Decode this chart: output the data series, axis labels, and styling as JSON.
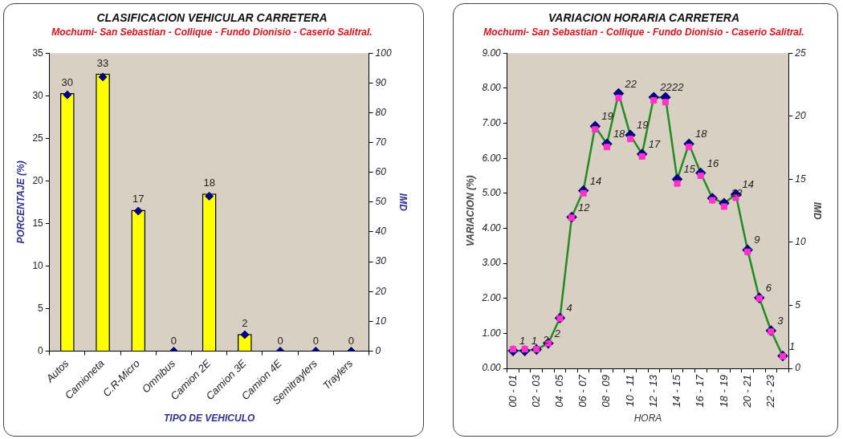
{
  "chart_data": [
    {
      "type": "bar",
      "title": "CLASIFICACION VEHICULAR CARRETERA",
      "subtitle": "Mochumi- San Sebastian - Collique - Fundo Dionisio - Caserio Salitral.",
      "xlabel": "TIPO DE VEHICULO",
      "ylabel": "PORCENTAJE (%)",
      "y2label": "IMD",
      "categories": [
        "Autos",
        "Camioneta",
        "C.R-Micro",
        "Omnibus",
        "Camion 2E",
        "Camion 3E",
        "Camion 4E",
        "Semitraylers",
        "Traylers"
      ],
      "series": [
        {
          "type": "bar",
          "color": "#ffff00",
          "values": [
            30.3,
            32.6,
            16.6,
            0,
            18.5,
            2.0,
            0,
            0,
            0
          ],
          "value_labels": [
            "30",
            "33",
            "17",
            "0",
            "18",
            "2",
            "0",
            "0",
            "0"
          ]
        },
        {
          "type": "scatter",
          "axis": "y2",
          "color": "#000080",
          "marker": "diamond",
          "values": [
            86,
            92,
            47,
            0,
            52,
            5.5,
            0,
            0,
            0
          ]
        }
      ],
      "ylim": [
        0,
        35
      ],
      "yticks": [
        0,
        5,
        10,
        15,
        20,
        25,
        30,
        35
      ],
      "y2lim": [
        0,
        100
      ],
      "y2ticks": [
        0,
        10,
        20,
        30,
        40,
        50,
        60,
        70,
        80,
        90,
        100
      ]
    },
    {
      "type": "line",
      "title": "VARIACION HORARIA CARRETERA",
      "subtitle": "Mochumi- San Sebastian - Collique - Fundo Dionisio - Caserio Salitral.",
      "xlabel": "HORA",
      "ylabel": "VARIACION (%)",
      "y2label": "IMD",
      "categories": [
        "00 - 01",
        null,
        "02 - 03",
        null,
        "04 - 05",
        null,
        "06 - 07",
        null,
        "08 - 09",
        null,
        "10 - 11",
        null,
        "12 - 13",
        null,
        "14 - 15",
        null,
        "16 - 17",
        null,
        "18 - 19",
        null,
        "20 - 21",
        null,
        "22 - 23",
        null
      ],
      "series": [
        {
          "type": "scatter",
          "color": "#ff33cc",
          "marker": "square",
          "values": [
            0.55,
            0.55,
            0.55,
            0.72,
            1.43,
            4.3,
            5.0,
            6.82,
            6.32,
            7.72,
            6.55,
            6.05,
            7.65,
            7.6,
            5.28,
            6.32,
            5.5,
            4.8,
            4.62,
            4.87,
            3.33,
            2.0,
            1.05,
            0.35
          ]
        },
        {
          "type": "line",
          "axis": "y2",
          "color": "#228b22",
          "colors": [
            "#000080",
            "#000080",
            "#000080",
            "#000080",
            "#000080",
            "#000080",
            "#000080",
            "#000080",
            "#000080",
            "#000080",
            "#000080",
            "#000080",
            "#000080",
            "#000080",
            "#000080",
            "#000080",
            "#000080",
            "#000080",
            "#000080",
            "#000080",
            "#000080",
            "#000080",
            "#000080",
            "#000080"
          ],
          "marker": "diamond",
          "values": [
            1.4,
            1.4,
            1.5,
            2.0,
            4.0,
            12.0,
            14.1,
            19.2,
            17.8,
            21.8,
            18.5,
            17.0,
            21.5,
            21.5,
            15.0,
            17.8,
            15.5,
            13.5,
            13.1,
            13.8,
            9.4,
            5.6,
            3.0,
            1.0
          ],
          "value_labels": [
            "1",
            "1",
            "2",
            "2",
            "4",
            "12",
            "14",
            "19",
            "18",
            "22",
            "19",
            "17",
            "22",
            "22",
            "15",
            "18",
            "16",
            null,
            "13",
            "14",
            "9",
            "6",
            "3",
            "1"
          ]
        }
      ],
      "ylim": [
        0,
        9
      ],
      "yticks": [
        {
          "value": 0,
          "label": "0.00"
        },
        {
          "value": 1,
          "label": "1.00"
        },
        {
          "value": 2,
          "label": "2.00"
        },
        {
          "value": 3,
          "label": "3.00"
        },
        {
          "value": 4,
          "label": "4.00"
        },
        {
          "value": 5,
          "label": "5.00"
        },
        {
          "value": 6,
          "label": "6.00"
        },
        {
          "value": 7,
          "label": "7.00"
        },
        {
          "value": 8,
          "label": "8.00"
        },
        {
          "value": 9,
          "label": "9.00"
        }
      ],
      "y2lim": [
        0,
        25
      ],
      "y2ticks": [
        0,
        5,
        10,
        15,
        20,
        25
      ]
    }
  ]
}
